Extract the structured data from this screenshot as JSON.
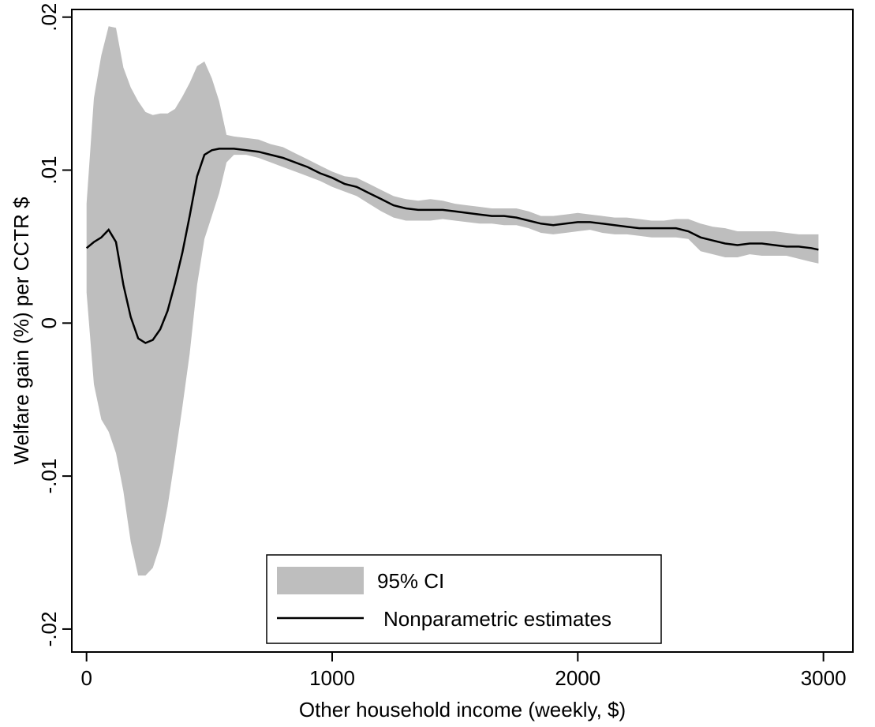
{
  "chart_data": {
    "type": "line",
    "title": "",
    "xlabel": "Other household income (weekly, $)",
    "ylabel": "Welfare gain (%) per CCTR $",
    "xlim": [
      -60,
      3120
    ],
    "ylim": [
      -0.0215,
      0.0205
    ],
    "x_ticks": [
      {
        "value": 0,
        "label": "0"
      },
      {
        "value": 1000,
        "label": "1000"
      },
      {
        "value": 2000,
        "label": "2000"
      },
      {
        "value": 3000,
        "label": "3000"
      }
    ],
    "y_ticks": [
      {
        "value": -0.02,
        "label": "-.02"
      },
      {
        "value": -0.01,
        "label": "-.01"
      },
      {
        "value": 0,
        "label": "0"
      },
      {
        "value": 0.01,
        "label": ".01"
      },
      {
        "value": 0.02,
        "label": ".02"
      }
    ],
    "grid": false,
    "legend_position": "bottom-center",
    "colors": {
      "ci_fill": "#bebebe",
      "line": "#000000"
    },
    "series": [
      {
        "name": "95% CI",
        "kind": "band",
        "x": [
          0,
          30,
          60,
          90,
          120,
          150,
          180,
          210,
          240,
          270,
          300,
          330,
          360,
          390,
          420,
          450,
          480,
          510,
          540,
          570,
          600,
          650,
          700,
          750,
          800,
          850,
          900,
          950,
          1000,
          1050,
          1100,
          1150,
          1200,
          1250,
          1300,
          1350,
          1400,
          1450,
          1500,
          1550,
          1600,
          1650,
          1700,
          1750,
          1800,
          1850,
          1900,
          1950,
          2000,
          2050,
          2100,
          2150,
          2200,
          2250,
          2300,
          2350,
          2400,
          2450,
          2500,
          2550,
          2600,
          2650,
          2700,
          2750,
          2800,
          2850,
          2900,
          2950,
          2980
        ],
        "lower": [
          0.002,
          -0.004,
          -0.0063,
          -0.0071,
          -0.0085,
          -0.011,
          -0.0143,
          -0.0165,
          -0.0165,
          -0.016,
          -0.0145,
          -0.012,
          -0.0088,
          -0.0055,
          -0.002,
          0.0025,
          0.0055,
          0.007,
          0.0085,
          0.0105,
          0.011,
          0.011,
          0.0108,
          0.0105,
          0.0102,
          0.0099,
          0.0096,
          0.0093,
          0.0089,
          0.0086,
          0.0083,
          0.0078,
          0.0073,
          0.0069,
          0.0067,
          0.0067,
          0.0067,
          0.0068,
          0.0067,
          0.0066,
          0.0065,
          0.0065,
          0.0064,
          0.0064,
          0.0062,
          0.0059,
          0.0058,
          0.0059,
          0.006,
          0.0061,
          0.0059,
          0.0058,
          0.0058,
          0.0057,
          0.0056,
          0.0056,
          0.0056,
          0.0055,
          0.0047,
          0.0045,
          0.0043,
          0.0043,
          0.0045,
          0.0044,
          0.0044,
          0.0044,
          0.0042,
          0.004,
          0.0039
        ],
        "upper": [
          0.0078,
          0.0147,
          0.0175,
          0.0194,
          0.0193,
          0.0167,
          0.0154,
          0.0145,
          0.0138,
          0.0136,
          0.0137,
          0.0137,
          0.014,
          0.0148,
          0.0157,
          0.0168,
          0.0171,
          0.016,
          0.0145,
          0.0123,
          0.0122,
          0.0121,
          0.012,
          0.0117,
          0.0115,
          0.0111,
          0.0107,
          0.0103,
          0.0099,
          0.0096,
          0.0095,
          0.0091,
          0.0087,
          0.0083,
          0.0081,
          0.008,
          0.0081,
          0.008,
          0.0078,
          0.0077,
          0.0076,
          0.0075,
          0.0075,
          0.0075,
          0.0073,
          0.007,
          0.007,
          0.0071,
          0.0072,
          0.0071,
          0.007,
          0.0069,
          0.0069,
          0.0068,
          0.0067,
          0.0067,
          0.0068,
          0.0068,
          0.0065,
          0.0063,
          0.0062,
          0.006,
          0.006,
          0.006,
          0.006,
          0.0059,
          0.0058,
          0.0058,
          0.0058
        ]
      },
      {
        "name": "Nonparametric estimates",
        "kind": "line",
        "x": [
          0,
          30,
          60,
          90,
          120,
          150,
          180,
          210,
          240,
          270,
          300,
          330,
          360,
          390,
          420,
          450,
          480,
          510,
          540,
          570,
          600,
          650,
          700,
          750,
          800,
          850,
          900,
          950,
          1000,
          1050,
          1100,
          1150,
          1200,
          1250,
          1300,
          1350,
          1400,
          1450,
          1500,
          1550,
          1600,
          1650,
          1700,
          1750,
          1800,
          1850,
          1900,
          1950,
          2000,
          2050,
          2100,
          2150,
          2200,
          2250,
          2300,
          2350,
          2400,
          2450,
          2500,
          2550,
          2600,
          2650,
          2700,
          2750,
          2800,
          2850,
          2900,
          2950,
          2980
        ],
        "y": [
          0.0049,
          0.0053,
          0.0056,
          0.0061,
          0.0053,
          0.0025,
          0.0004,
          -0.001,
          -0.0013,
          -0.0011,
          -0.0004,
          0.0008,
          0.0026,
          0.0046,
          0.007,
          0.0096,
          0.011,
          0.0113,
          0.0114,
          0.0114,
          0.0114,
          0.0113,
          0.0112,
          0.011,
          0.0108,
          0.0105,
          0.0102,
          0.0098,
          0.0095,
          0.0091,
          0.0089,
          0.0085,
          0.0081,
          0.0077,
          0.0075,
          0.0074,
          0.0074,
          0.0074,
          0.0073,
          0.0072,
          0.0071,
          0.007,
          0.007,
          0.0069,
          0.0067,
          0.0065,
          0.0064,
          0.0065,
          0.0066,
          0.0066,
          0.0065,
          0.0064,
          0.0063,
          0.0062,
          0.0062,
          0.0062,
          0.0062,
          0.006,
          0.0056,
          0.0054,
          0.0052,
          0.0051,
          0.0052,
          0.0052,
          0.0051,
          0.005,
          0.005,
          0.0049,
          0.0048
        ]
      }
    ],
    "legend": {
      "items": [
        {
          "label": "95% CI",
          "symbol": "band"
        },
        {
          "label": "Nonparametric estimates",
          "symbol": "line"
        }
      ]
    }
  }
}
